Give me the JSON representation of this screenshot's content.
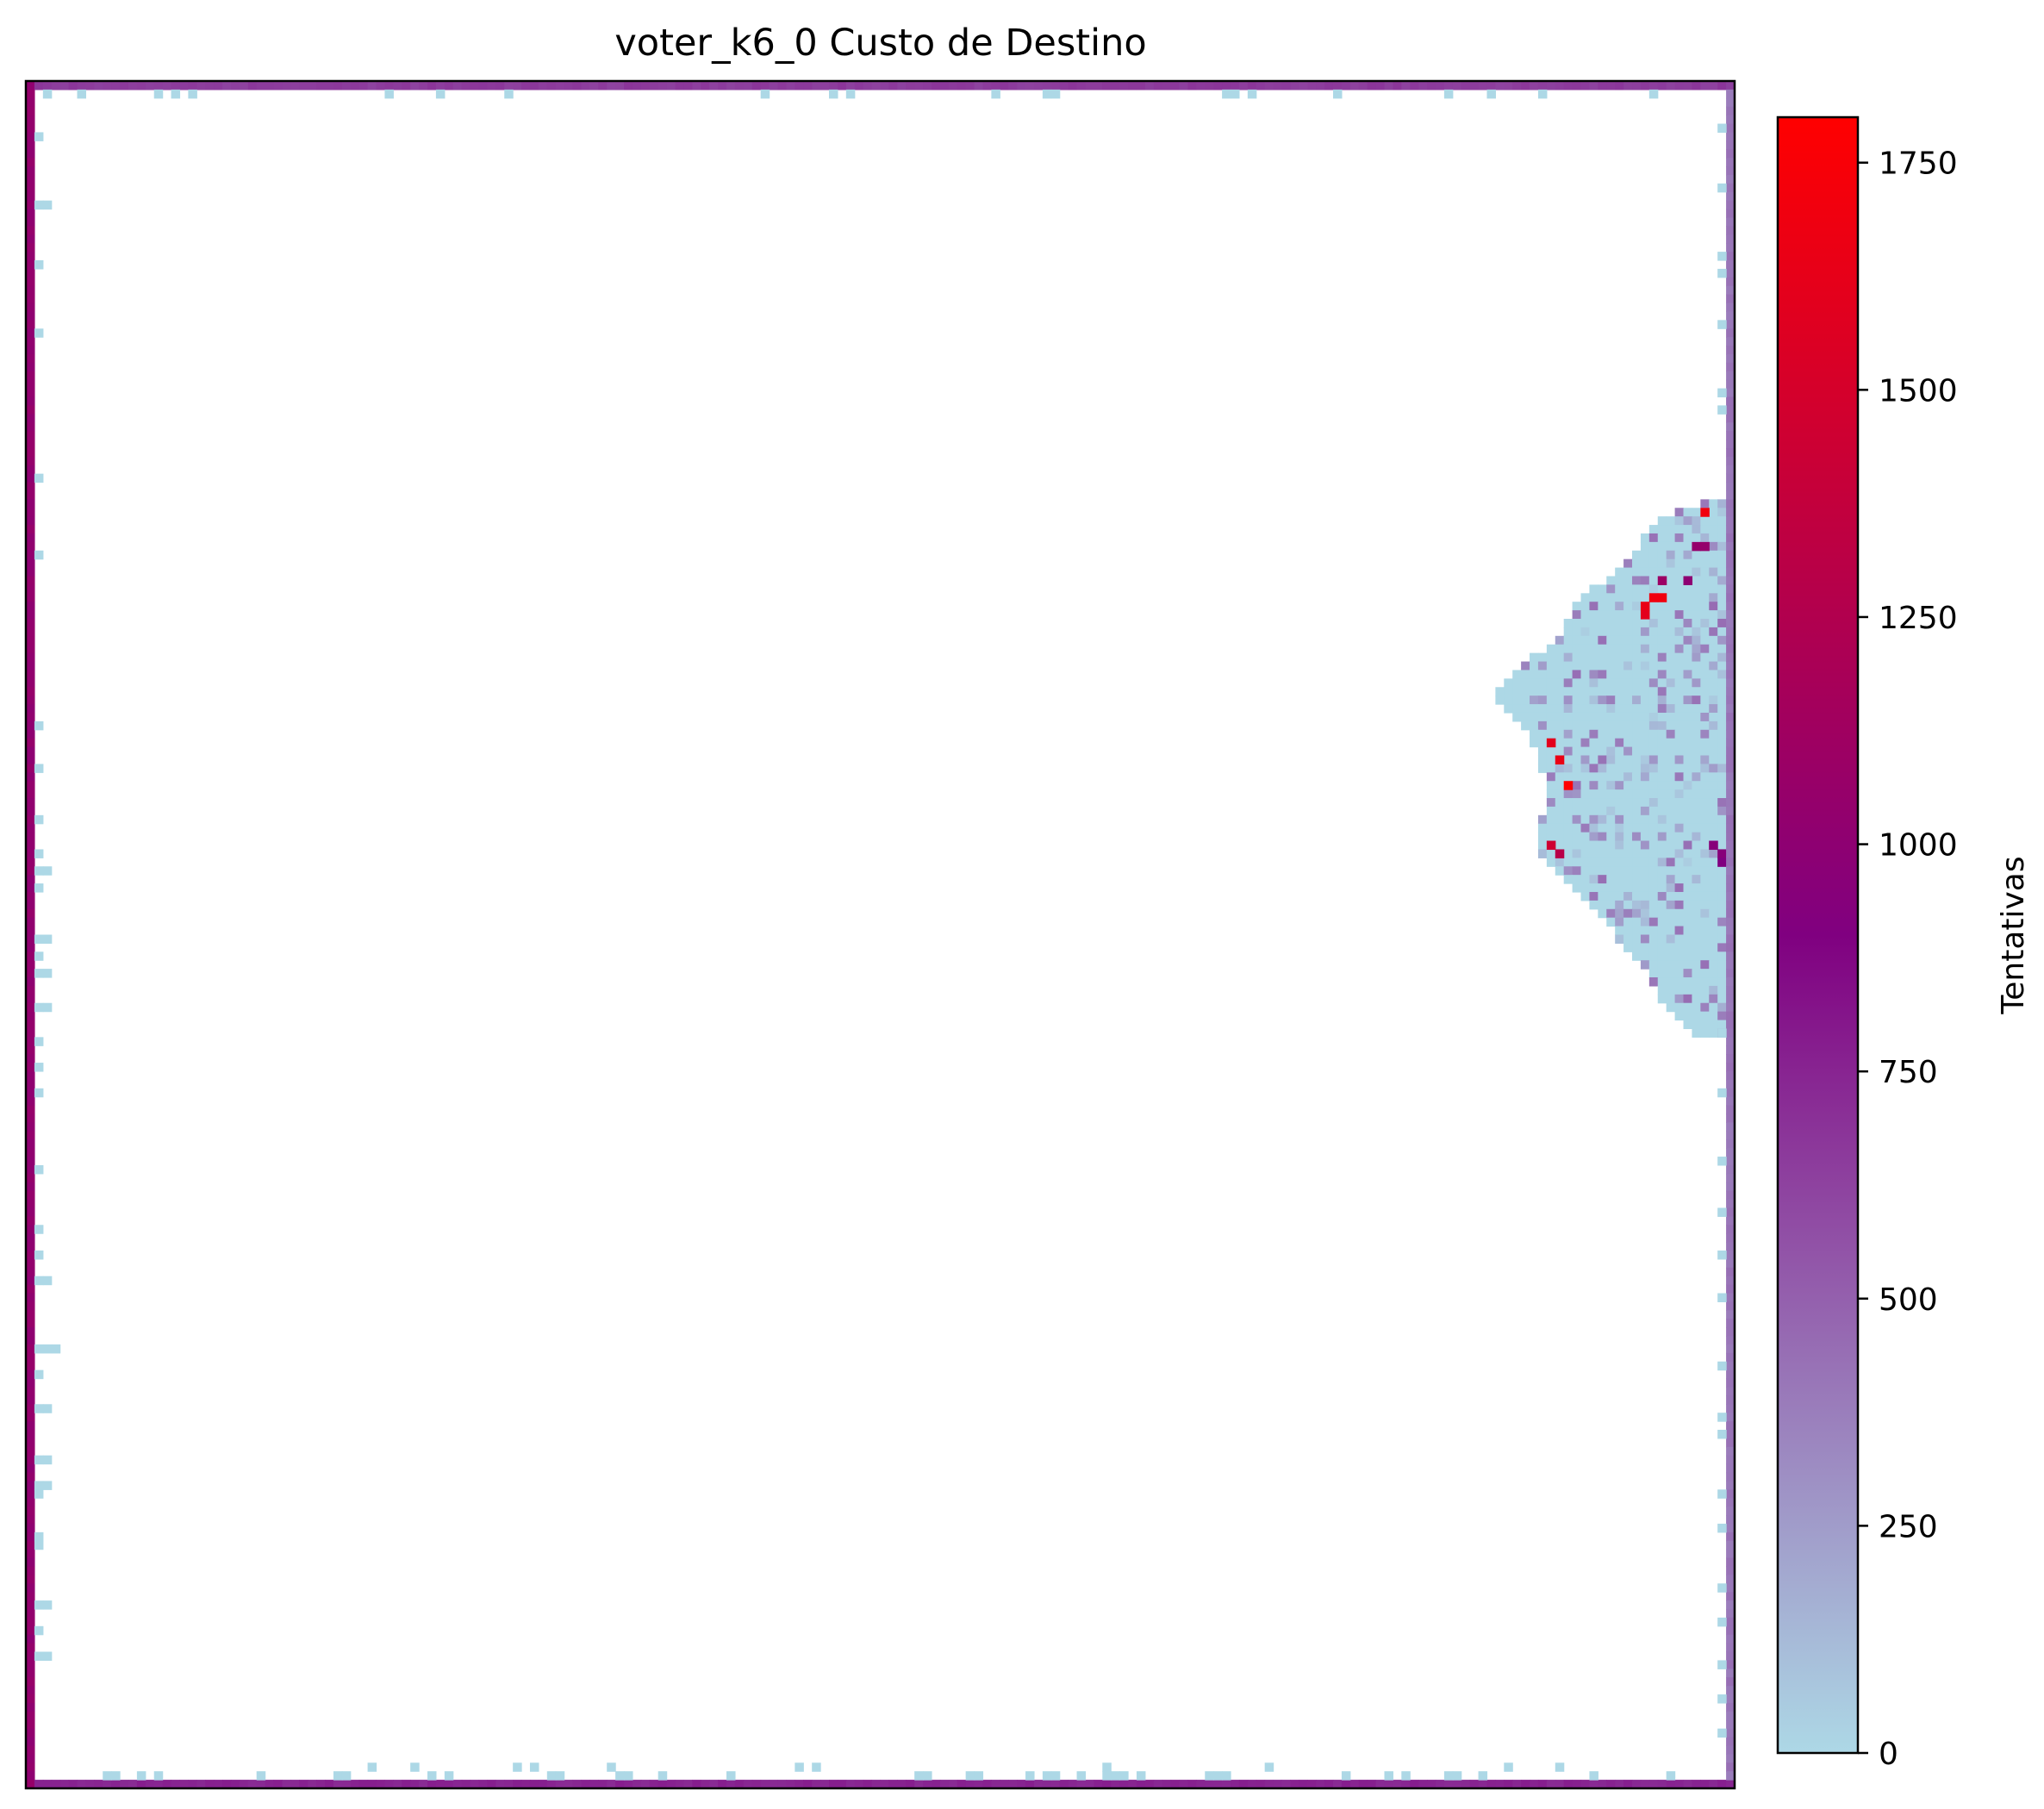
{
  "chart_data": {
    "type": "heatmap",
    "title": "voter_k6_0 Custo de Destino",
    "xlabel": "",
    "ylabel": "",
    "grid": false,
    "axes_ticks_visible": false,
    "colorbar": {
      "label": "Tentativas",
      "range": [
        0,
        1800
      ],
      "ticks": [
        0,
        250,
        500,
        750,
        1000,
        1250,
        1500,
        1750
      ],
      "colormap": [
        "#add8e6",
        "#800080",
        "#ff0000"
      ],
      "colormap_stops": [
        0,
        0.5,
        1
      ]
    },
    "background_color": "#ffffff",
    "grid_size": [
      200,
      200
    ],
    "empty_cell_value": null,
    "regions": [
      {
        "name": "left edge",
        "cells": "column 0, rows 0-199",
        "approx_value": 1000
      },
      {
        "name": "bottom edge",
        "cells": "row 199, columns 0-199",
        "approx_value": 750
      },
      {
        "name": "top edge",
        "cells": "row 0, columns 0-199",
        "approx_value": 650
      },
      {
        "name": "right edge",
        "cells": "column 199, rows 0-199",
        "approx_value": 400
      },
      {
        "name": "right-side cluster",
        "cells": "columns ~172-199, rows ~49-111",
        "approx_value": 50
      }
    ],
    "hot_cells": [
      {
        "col": 196,
        "row": 50,
        "value": 1700
      },
      {
        "col": 195,
        "row": 54,
        "value": 1050
      },
      {
        "col": 196,
        "row": 54,
        "value": 1050
      },
      {
        "col": 191,
        "row": 58,
        "value": 1100
      },
      {
        "col": 194,
        "row": 58,
        "value": 1000
      },
      {
        "col": 190,
        "row": 60,
        "value": 1700
      },
      {
        "col": 191,
        "row": 60,
        "value": 1700
      },
      {
        "col": 189,
        "row": 61,
        "value": 1650
      },
      {
        "col": 189,
        "row": 62,
        "value": 1600
      },
      {
        "col": 178,
        "row": 77,
        "value": 1600
      },
      {
        "col": 179,
        "row": 79,
        "value": 1650
      },
      {
        "col": 180,
        "row": 82,
        "value": 1800
      },
      {
        "col": 178,
        "row": 89,
        "value": 1450
      },
      {
        "col": 179,
        "row": 90,
        "value": 1300
      },
      {
        "col": 197,
        "row": 89,
        "value": 950
      },
      {
        "col": 198,
        "row": 90,
        "value": 950
      },
      {
        "col": 198,
        "row": 91,
        "value": 900
      }
    ]
  }
}
